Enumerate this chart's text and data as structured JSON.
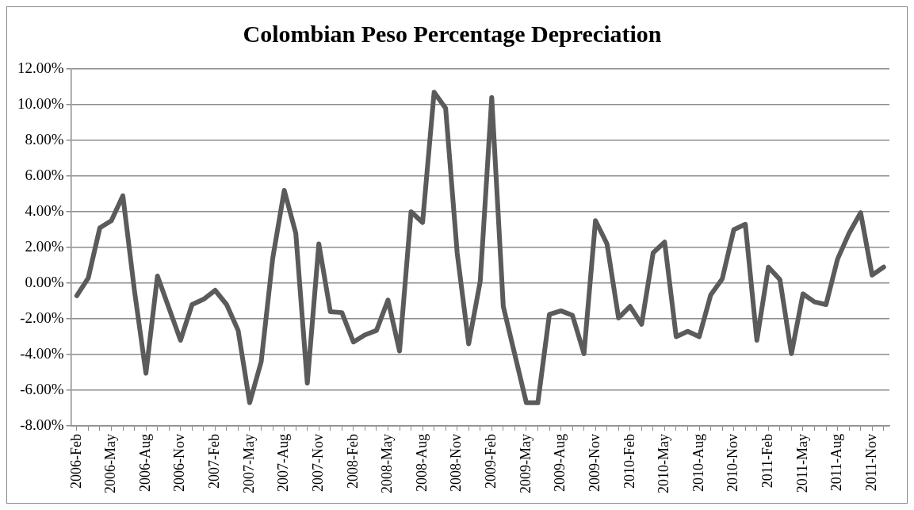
{
  "chart_data": {
    "type": "line",
    "title": "Colombian Peso Percentage Depreciation",
    "categories": [
      "2006-Feb",
      null,
      null,
      "2006-May",
      null,
      null,
      "2006-Aug",
      null,
      null,
      "2006-Nov",
      null,
      null,
      "2007-Feb",
      null,
      null,
      "2007-May",
      null,
      null,
      "2007-Aug",
      null,
      null,
      "2007-Nov",
      null,
      null,
      "2008-Feb",
      null,
      null,
      "2008-May",
      null,
      null,
      "2008-Aug",
      null,
      null,
      "2008-Nov",
      null,
      null,
      "2009-Feb",
      null,
      null,
      "2009-May",
      null,
      null,
      "2009-Aug",
      null,
      null,
      "2009-Nov",
      null,
      null,
      "2010-Feb",
      null,
      null,
      "2010-May",
      null,
      null,
      "2010-Aug",
      null,
      null,
      "2010-Nov",
      null,
      null,
      "2011-Feb",
      null,
      null,
      "2011-May",
      null,
      null,
      "2011-Aug",
      null,
      null,
      "2011-Nov",
      null
    ],
    "values": [
      -0.7,
      0.3,
      3.1,
      3.5,
      4.9,
      -0.4,
      -5.05,
      0.4,
      -1.4,
      -3.2,
      -1.2,
      -0.9,
      -0.4,
      -1.2,
      -2.65,
      -6.7,
      -4.4,
      1.4,
      5.2,
      2.8,
      -5.6,
      2.2,
      -1.6,
      -1.65,
      -3.3,
      -2.9,
      -2.65,
      -0.95,
      -3.8,
      4.0,
      3.4,
      10.7,
      9.8,
      1.7,
      -3.4,
      0.1,
      10.4,
      -1.3,
      -4.0,
      -6.7,
      -6.7,
      -1.75,
      -1.55,
      -1.8,
      -3.95,
      3.5,
      2.2,
      -1.95,
      -1.3,
      -2.3,
      1.7,
      2.3,
      -3.0,
      -2.7,
      -3.0,
      -0.65,
      0.25,
      3.0,
      3.3,
      -3.2,
      0.9,
      0.2,
      -3.95,
      -0.6,
      -1.05,
      -1.2,
      1.35,
      2.8,
      3.95,
      0.45,
      0.9
    ],
    "color": "#5b5b5b",
    "ylim": [
      -8,
      12
    ],
    "yticks": [
      {
        "value": -8,
        "label": "-8.00%"
      },
      {
        "value": -6,
        "label": "-6.00%"
      },
      {
        "value": -4,
        "label": "-4.00%"
      },
      {
        "value": -2,
        "label": "-2.00%"
      },
      {
        "value": 0,
        "label": "0.00%"
      },
      {
        "value": 2,
        "label": "2.00%"
      },
      {
        "value": 4,
        "label": "4.00%"
      },
      {
        "value": 6,
        "label": "6.00%"
      },
      {
        "value": 8,
        "label": "8.00%"
      },
      {
        "value": 10,
        "label": "10.00%"
      },
      {
        "value": 12,
        "label": "12.00%"
      }
    ],
    "grid": "y"
  }
}
